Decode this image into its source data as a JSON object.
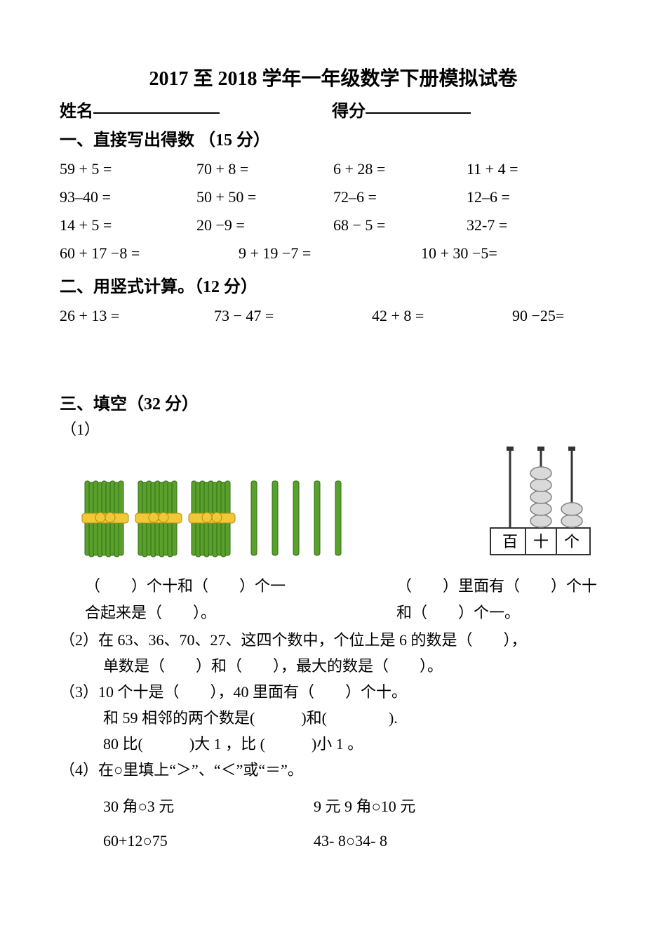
{
  "title": "2017 至 2018 学年一年级数学下册模拟试卷",
  "header": {
    "name_label": "姓名",
    "score_label": "得分"
  },
  "section1": {
    "heading": "一、直接写出得数 （15 分）",
    "rows": [
      [
        "59 + 5 =",
        "70 + 8 =",
        "6 + 28 =",
        "11 + 4 ="
      ],
      [
        "93–40 =",
        "50 + 50 =",
        "72–6 =",
        "12–6 ="
      ],
      [
        "14 + 5 =",
        "20 −9 =",
        "68 − 5 =",
        "32-7 ="
      ],
      [
        "60 + 17 −8 =",
        "9 + 19 −7 =",
        "10 + 30 −5="
      ]
    ]
  },
  "section2": {
    "heading": "二、用竖式计算。（12 分）",
    "row": [
      "26 + 13   =",
      "73 − 47 =",
      "42 + 8 =",
      "90 −25="
    ]
  },
  "section3": {
    "heading": "三、填空（32 分）",
    "q1_label": "（1）",
    "sticks": {
      "bundle_count": 3,
      "single_count": 5,
      "stick_fill": "#5aa02c",
      "stick_stroke": "#2f6b12",
      "band_fill": "#f2c838"
    },
    "abacus": {
      "rod_count": 3,
      "beads": [
        0,
        5,
        2
      ],
      "labels": [
        "百",
        "十",
        "个"
      ],
      "bead_fill": "#d9d9d9",
      "bead_stroke": "#808080",
      "frame_stroke": "#333333"
    },
    "q1_left_line1": "（　　）个十和（　　）个一",
    "q1_left_line2": "合起来是（　　）。",
    "q1_right_line1": "（　　）里面有（　　）个十",
    "q1_right_line2": "和（　　）个一。",
    "q2_line1": "（2）在 63、36、70、27、这四个数中，个位上是 6 的数是（　　），",
    "q2_line2": "单数是（　　）和（　　），最大的数是（　　）。",
    "q3_line1": "（3）10 个十是（　　），40 里面有（　　）个十。",
    "q3_line2": "和 59 相邻的两个数是(　　　)和(　　　　).",
    "q3_line3": "80 比(　　　)大 1 ，比 (　　　)小 1 。",
    "q4_heading": "（4）在○里填上“＞”、“＜”或“＝”。",
    "q4_row1": [
      "30 角○3 元",
      "9 元 9 角○10 元"
    ],
    "q4_row2": [
      "60+12○75",
      "43- 8○34- 8"
    ]
  },
  "colors": {
    "text": "#000000",
    "background": "#ffffff"
  }
}
